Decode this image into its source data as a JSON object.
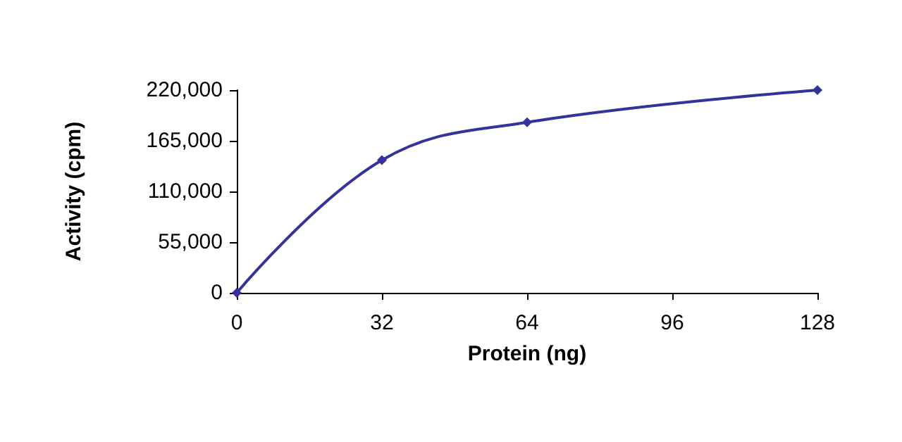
{
  "chart_data": {
    "type": "line",
    "xlabel": "Protein (ng)",
    "ylabel": "Activity (cpm)",
    "x": [
      0,
      32,
      64,
      128
    ],
    "series": [
      {
        "color": "#333399",
        "values": [
          0,
          144000,
          185000,
          220000
        ]
      }
    ],
    "xlim": [
      0,
      128
    ],
    "xticks": [
      0,
      32,
      64,
      96,
      128
    ],
    "ylim": [
      0,
      220000
    ],
    "yticks": [
      {
        "value": 0,
        "label": "0"
      },
      {
        "value": 55000,
        "label": "55,000"
      },
      {
        "value": 110000,
        "label": "110,000"
      },
      {
        "value": 165000,
        "label": "165,000"
      },
      {
        "value": 220000,
        "label": "220,000"
      }
    ],
    "grid": false,
    "marker": "diamond",
    "line_style": "solid"
  }
}
